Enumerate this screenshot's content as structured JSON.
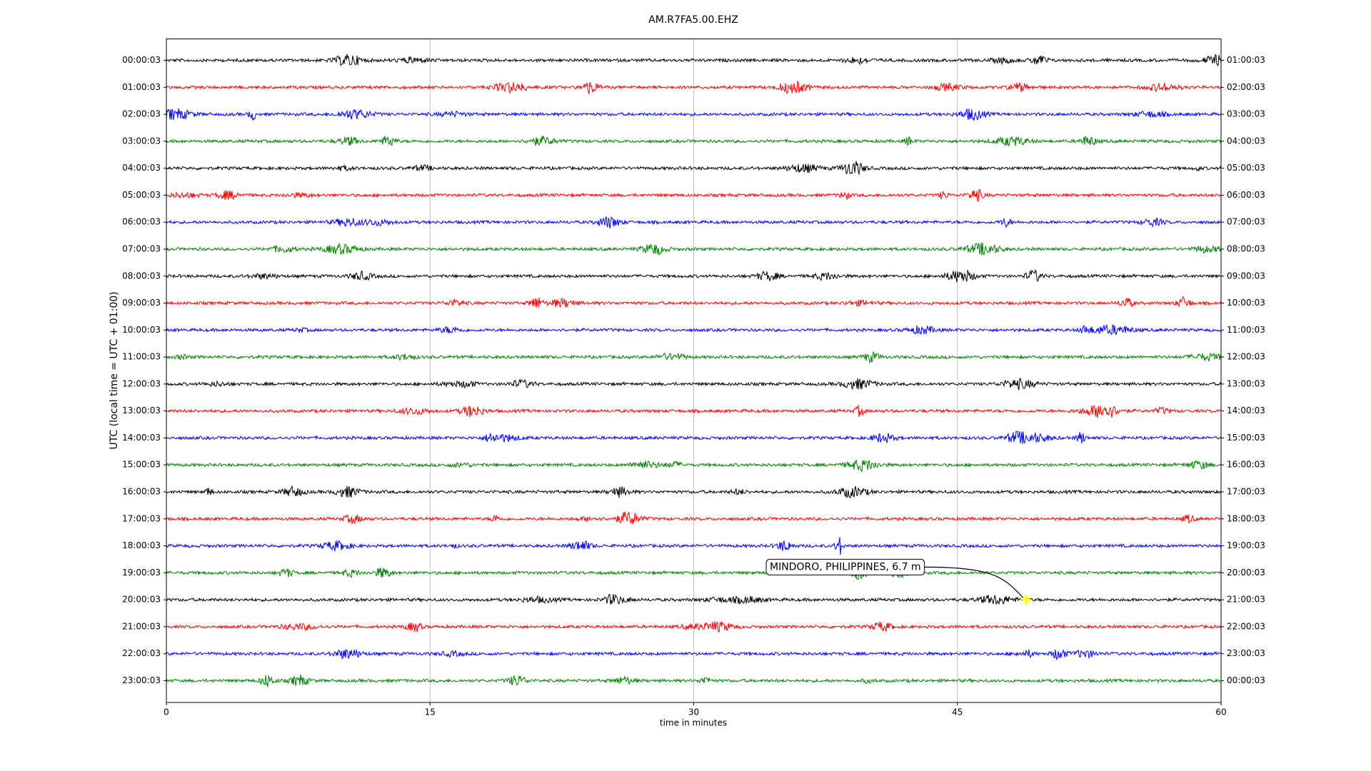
{
  "chart_data": {
    "type": "dayplot",
    "title": "AM.R7FA5.00.EHZ",
    "x_label": "time in minutes",
    "y_label": "UTC (local time = UTC + 01:00)",
    "xlim": [
      0,
      60
    ],
    "xticks": [
      0,
      15,
      30,
      45,
      60
    ],
    "grid": true,
    "rows": [
      {
        "left_label": "00:00:03",
        "right_label": "01:00:03",
        "color": "#000000"
      },
      {
        "left_label": "01:00:03",
        "right_label": "02:00:03",
        "color": "#ff0000"
      },
      {
        "left_label": "02:00:03",
        "right_label": "03:00:03",
        "color": "#0000ff"
      },
      {
        "left_label": "03:00:03",
        "right_label": "04:00:03",
        "color": "#008000"
      },
      {
        "left_label": "04:00:03",
        "right_label": "05:00:03",
        "color": "#000000"
      },
      {
        "left_label": "05:00:03",
        "right_label": "06:00:03",
        "color": "#ff0000"
      },
      {
        "left_label": "06:00:03",
        "right_label": "07:00:03",
        "color": "#0000ff"
      },
      {
        "left_label": "07:00:03",
        "right_label": "08:00:03",
        "color": "#008000"
      },
      {
        "left_label": "08:00:03",
        "right_label": "09:00:03",
        "color": "#000000"
      },
      {
        "left_label": "09:00:03",
        "right_label": "10:00:03",
        "color": "#ff0000"
      },
      {
        "left_label": "10:00:03",
        "right_label": "11:00:03",
        "color": "#0000ff"
      },
      {
        "left_label": "11:00:03",
        "right_label": "12:00:03",
        "color": "#008000"
      },
      {
        "left_label": "12:00:03",
        "right_label": "13:00:03",
        "color": "#000000"
      },
      {
        "left_label": "13:00:03",
        "right_label": "14:00:03",
        "color": "#ff0000"
      },
      {
        "left_label": "14:00:03",
        "right_label": "15:00:03",
        "color": "#0000ff"
      },
      {
        "left_label": "15:00:03",
        "right_label": "16:00:03",
        "color": "#008000"
      },
      {
        "left_label": "16:00:03",
        "right_label": "17:00:03",
        "color": "#000000"
      },
      {
        "left_label": "17:00:03",
        "right_label": "18:00:03",
        "color": "#ff0000"
      },
      {
        "left_label": "18:00:03",
        "right_label": "19:00:03",
        "color": "#0000ff"
      },
      {
        "left_label": "19:00:03",
        "right_label": "20:00:03",
        "color": "#008000"
      },
      {
        "left_label": "20:00:03",
        "right_label": "21:00:03",
        "color": "#000000"
      },
      {
        "left_label": "21:00:03",
        "right_label": "22:00:03",
        "color": "#ff0000"
      },
      {
        "left_label": "22:00:03",
        "right_label": "23:00:03",
        "color": "#0000ff"
      },
      {
        "left_label": "23:00:03",
        "right_label": "00:00:03",
        "color": "#008000"
      }
    ],
    "event": {
      "label": "MINDORO, PHILIPPINES, 6.7 m",
      "x": 48.9,
      "row_label": "20:00:03",
      "color": "#ffff00"
    }
  }
}
